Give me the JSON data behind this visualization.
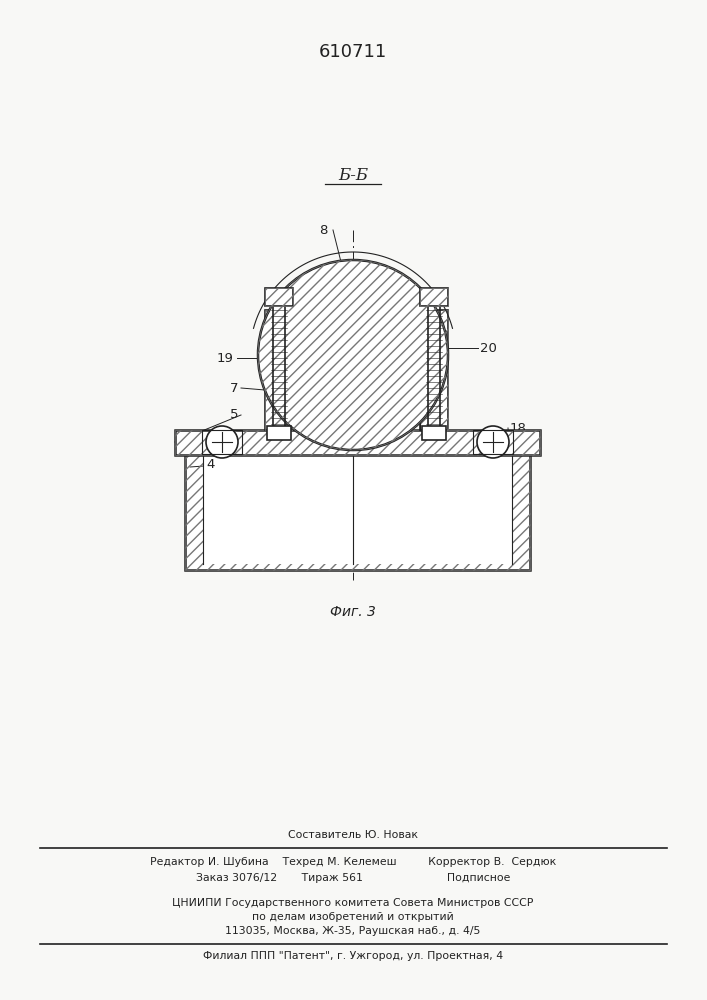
{
  "patent_number": "610711",
  "figure_label": "Фиг. 3",
  "section_label": "Б-Б",
  "bg_color": "#f8f8f6",
  "line_color": "#222222",
  "footer_lines": [
    "Составитель Ю. Новак",
    "Редактор И. Шубина    Техред М. Келемеш         Корректор В.  Сердюк",
    "Заказ 3076/12       Тираж 561                        Подписное",
    "ЦНИИПИ Государственного комитета Совета Министров СССР",
    "по делам изобретений и открытий",
    "113035, Москва, Ж-35, Раушская наб., д. 4/5",
    "Филиал ППП \"Патент\", г. Ужгород, ул. Проектная, 4"
  ]
}
